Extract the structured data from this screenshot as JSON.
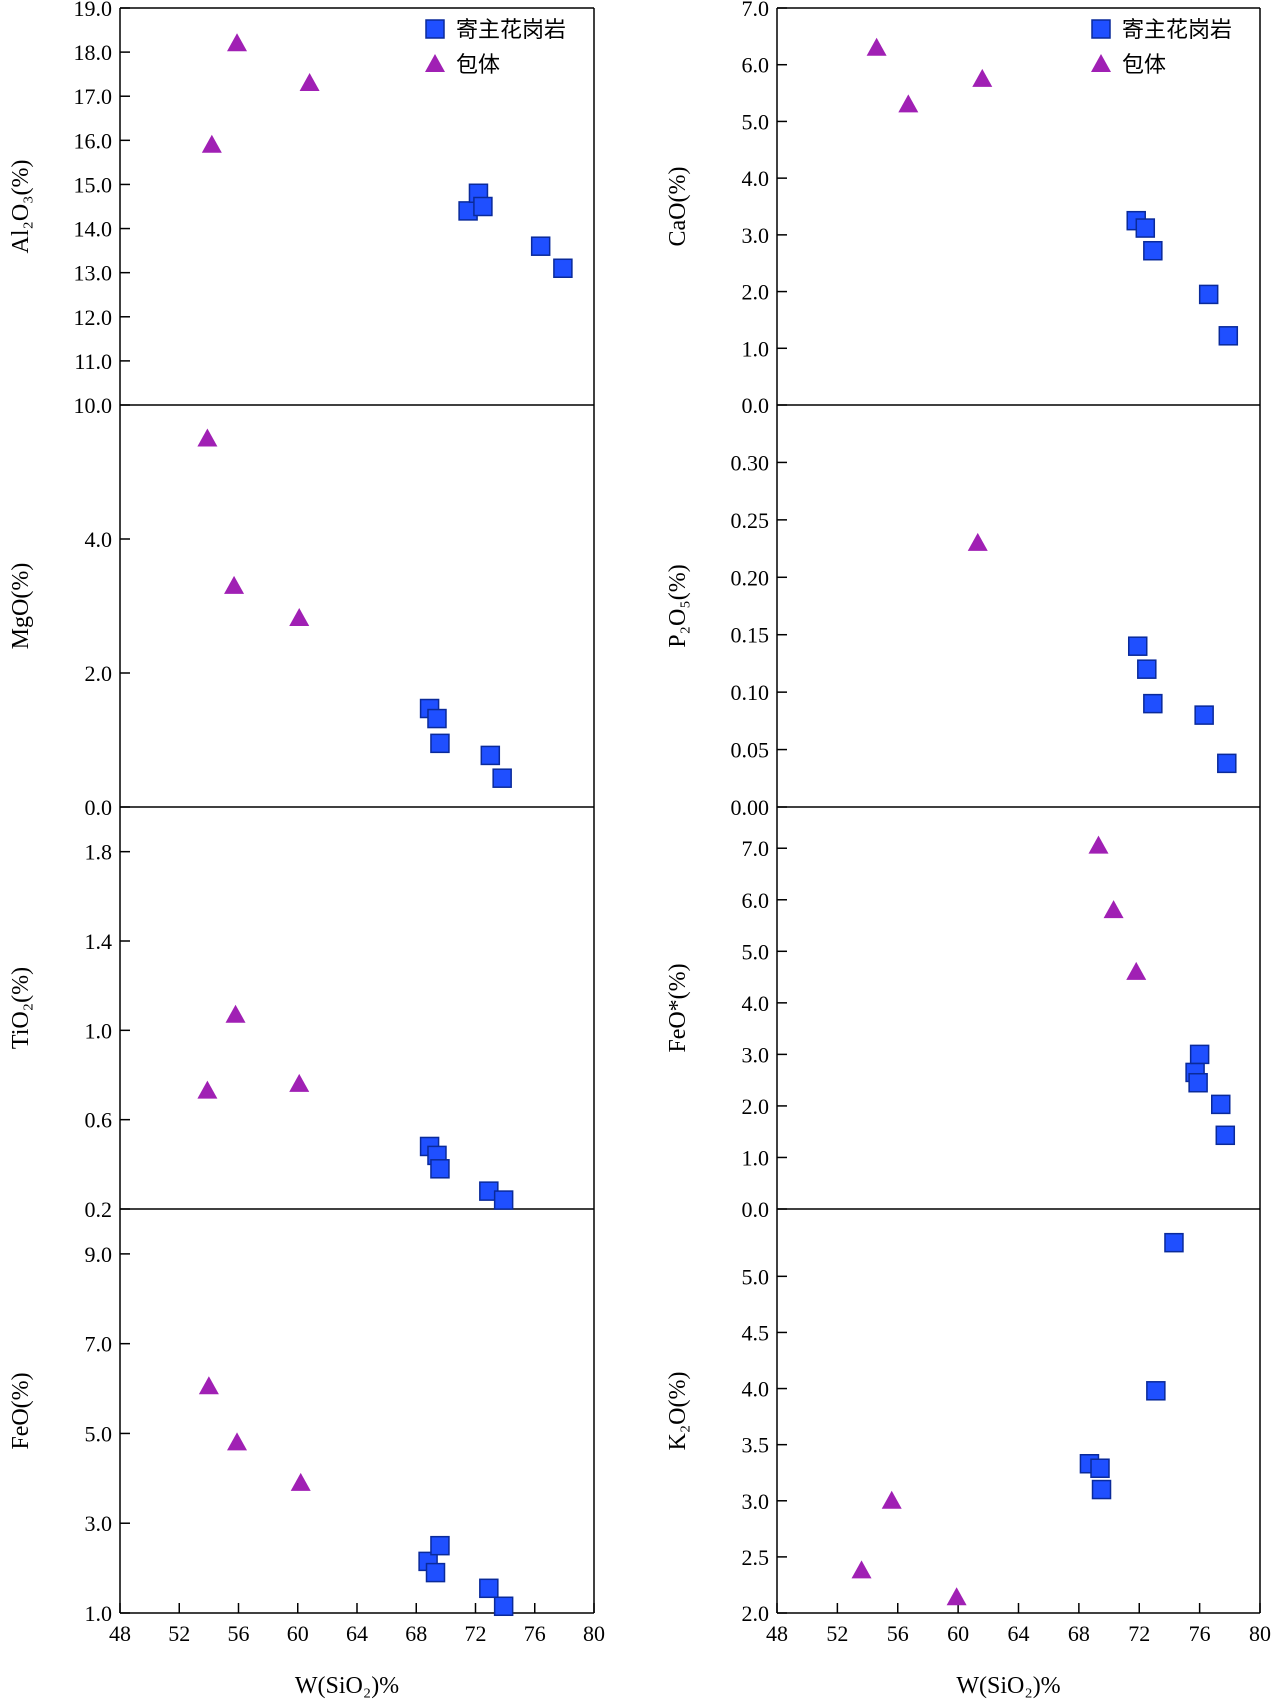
{
  "colors": {
    "host_granite": "#1f4fff",
    "host_granite_edge": "#0a2a9a",
    "enclave": "#a020b4"
  },
  "legend": [
    {
      "name": "寄主花岗岩",
      "marker": "square",
      "color": "#1f4fff"
    },
    {
      "name": "包体",
      "marker": "triangle",
      "color": "#a020b4"
    }
  ],
  "xlabel": "W(SiO₂)%",
  "x_ticks": [
    "48",
    "52",
    "56",
    "60",
    "64",
    "68",
    "72",
    "76",
    "80"
  ],
  "chart_data": [
    {
      "type": "scatter",
      "ylabel": "Al₂O₃(%)",
      "xlim": [
        48,
        80
      ],
      "ylim": [
        10,
        19
      ],
      "y_tick_values": [
        10,
        11,
        12,
        13,
        14,
        15,
        16,
        17,
        18,
        19
      ],
      "y_tick_labels": [
        "10.0",
        "11.0",
        "12.0",
        "13.0",
        "14.0",
        "15.0",
        "16.0",
        "17.0",
        "18.0",
        "19.0"
      ],
      "legend": true,
      "series": [
        {
          "name": "寄主花岗岩",
          "marker": "square",
          "x": [
            71.5,
            72.2,
            72.5,
            76.4,
            77.9
          ],
          "y": [
            14.4,
            14.8,
            14.5,
            13.6,
            13.1
          ]
        },
        {
          "name": "包体",
          "marker": "triangle",
          "x": [
            54.2,
            55.9,
            60.8
          ],
          "y": [
            15.9,
            18.2,
            17.3
          ]
        }
      ]
    },
    {
      "type": "scatter",
      "ylabel": "CaO(%)",
      "xlim": [
        48,
        80
      ],
      "ylim": [
        0,
        7
      ],
      "y_tick_values": [
        0,
        1,
        2,
        3,
        4,
        5,
        6,
        7
      ],
      "y_tick_labels": [
        "0.0",
        "1.0",
        "2.0",
        "3.0",
        "4.0",
        "5.0",
        "6.0",
        "7.0"
      ],
      "legend": true,
      "series": [
        {
          "name": "寄主花岗岩",
          "marker": "square",
          "x": [
            71.8,
            72.4,
            72.9,
            76.6,
            77.9
          ],
          "y": [
            3.25,
            3.12,
            2.72,
            1.95,
            1.22
          ]
        },
        {
          "name": "包体",
          "marker": "triangle",
          "x": [
            54.6,
            56.7,
            61.6
          ],
          "y": [
            6.3,
            5.3,
            5.75
          ]
        }
      ]
    },
    {
      "type": "scatter",
      "ylabel": "MgO(%)",
      "xlim": [
        48,
        80
      ],
      "ylim": [
        0,
        6
      ],
      "y_tick_values": [
        0,
        2,
        4
      ],
      "y_tick_labels": [
        "0.0",
        "2.0",
        "4.0"
      ],
      "legend": false,
      "series": [
        {
          "name": "寄主花岗岩",
          "marker": "square",
          "x": [
            68.9,
            69.4,
            69.6,
            73.0,
            73.8
          ],
          "y": [
            1.47,
            1.32,
            0.95,
            0.77,
            0.43
          ]
        },
        {
          "name": "包体",
          "marker": "triangle",
          "x": [
            53.9,
            55.7,
            60.1
          ],
          "y": [
            5.5,
            3.3,
            2.82
          ]
        }
      ]
    },
    {
      "type": "scatter",
      "ylabel": "P₂O₅(%)",
      "xlim": [
        48,
        80
      ],
      "ylim": [
        0,
        0.35
      ],
      "y_tick_values": [
        0,
        0.05,
        0.1,
        0.15,
        0.2,
        0.25,
        0.3
      ],
      "y_tick_labels": [
        "0.00",
        "0.05",
        "0.10",
        "0.15",
        "0.20",
        "0.25",
        "0.30"
      ],
      "legend": false,
      "series": [
        {
          "name": "寄主花岗岩",
          "marker": "square",
          "x": [
            71.9,
            72.5,
            72.9,
            76.3,
            77.8
          ],
          "y": [
            0.14,
            0.12,
            0.09,
            0.08,
            0.038
          ]
        },
        {
          "name": "包体",
          "marker": "triangle",
          "x": [
            61.3
          ],
          "y": [
            0.23
          ]
        }
      ]
    },
    {
      "type": "scatter",
      "ylabel": "TiO₂(%)",
      "xlim": [
        48,
        80
      ],
      "ylim": [
        0.2,
        2.0
      ],
      "y_tick_values": [
        0.2,
        0.6,
        1.0,
        1.4,
        1.8
      ],
      "y_tick_labels": [
        "0.2",
        "0.6",
        "1.0",
        "1.4",
        "1.8"
      ],
      "legend": false,
      "series": [
        {
          "name": "寄主花岗岩",
          "marker": "square",
          "x": [
            68.9,
            69.4,
            69.6,
            72.9,
            73.9
          ],
          "y": [
            0.48,
            0.44,
            0.38,
            0.28,
            0.24
          ]
        },
        {
          "name": "包体",
          "marker": "triangle",
          "x": [
            53.9,
            55.8,
            60.1
          ],
          "y": [
            0.73,
            1.07,
            0.76
          ]
        }
      ]
    },
    {
      "type": "scatter",
      "ylabel": "FeO*(%)",
      "xlim": [
        48,
        80
      ],
      "ylim": [
        0,
        7.8
      ],
      "y_tick_values": [
        0,
        1,
        2,
        3,
        4,
        5,
        6,
        7
      ],
      "y_tick_labels": [
        "0.0",
        "1.0",
        "2.0",
        "3.0",
        "4.0",
        "5.0",
        "6.0",
        "7.0"
      ],
      "legend": false,
      "series": [
        {
          "name": "寄主花岗岩",
          "marker": "square",
          "x": [
            75.7,
            75.9,
            76.0,
            77.4,
            77.7
          ],
          "y": [
            2.65,
            2.45,
            3.0,
            2.03,
            1.43
          ]
        },
        {
          "name": "包体",
          "marker": "triangle",
          "x": [
            69.3,
            70.3,
            71.8
          ],
          "y": [
            7.05,
            5.8,
            4.6
          ]
        }
      ]
    },
    {
      "type": "scatter",
      "ylabel": "FeO(%)",
      "xlim": [
        48,
        80
      ],
      "ylim": [
        1,
        10
      ],
      "y_tick_values": [
        1,
        3,
        5,
        7,
        9
      ],
      "y_tick_labels": [
        "1.0",
        "3.0",
        "5.0",
        "7.0",
        "9.0"
      ],
      "legend": false,
      "series": [
        {
          "name": "寄主花岗岩",
          "marker": "square",
          "x": [
            68.8,
            69.3,
            69.6,
            72.9,
            73.9
          ],
          "y": [
            2.15,
            1.9,
            2.5,
            1.55,
            1.15
          ]
        },
        {
          "name": "包体",
          "marker": "triangle",
          "x": [
            54.0,
            55.9,
            60.2
          ],
          "y": [
            6.05,
            4.8,
            3.9
          ]
        }
      ]
    },
    {
      "type": "scatter",
      "ylabel": "K₂O(%)",
      "xlim": [
        48,
        80
      ],
      "ylim": [
        2,
        5.6
      ],
      "y_tick_values": [
        2.0,
        2.5,
        3.0,
        3.5,
        4.0,
        4.5,
        5.0
      ],
      "y_tick_labels": [
        "2.0",
        "2.5",
        "3.0",
        "3.5",
        "4.0",
        "4.5",
        "5.0"
      ],
      "legend": false,
      "series": [
        {
          "name": "寄主花岗岩",
          "marker": "square",
          "x": [
            68.7,
            69.4,
            69.5,
            73.1,
            74.3
          ],
          "y": [
            3.33,
            3.29,
            3.1,
            3.98,
            5.3
          ]
        },
        {
          "name": "包体",
          "marker": "triangle",
          "x": [
            53.6,
            55.6,
            59.9
          ],
          "y": [
            2.38,
            3.0,
            2.14
          ]
        }
      ]
    }
  ]
}
